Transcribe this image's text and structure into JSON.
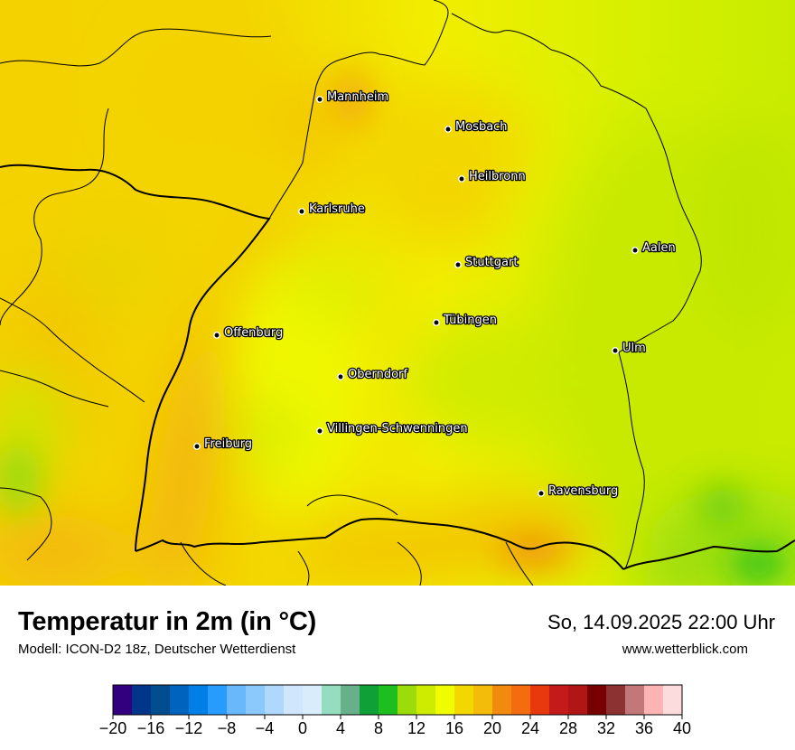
{
  "title": "Temperatur in 2m (in °C)",
  "model": "Modell: ICON-D2 18z, Deutscher Wetterdienst",
  "datetime": "So, 14.09.2025 22:00 Uhr",
  "website": "www.wetterblick.com",
  "map": {
    "cities": [
      {
        "name": "Mannheim"
      },
      {
        "name": "Mosbach"
      },
      {
        "name": "Heilbronn"
      },
      {
        "name": "Karlsruhe"
      },
      {
        "name": "Aalen"
      },
      {
        "name": "Stuttgart"
      },
      {
        "name": "Tübingen"
      },
      {
        "name": "Offenburg"
      },
      {
        "name": "Ulm"
      },
      {
        "name": "Oberndorf"
      },
      {
        "name": "Villingen-Schwenningen"
      },
      {
        "name": "Freiburg"
      },
      {
        "name": "Ravensburg"
      }
    ]
  },
  "color_scale": {
    "unit": "°C",
    "min": -20,
    "max": 40,
    "step": 2,
    "tick_labels": [
      "−20",
      "−16",
      "−12",
      "−8",
      "−4",
      "0",
      "4",
      "8",
      "12",
      "16",
      "20",
      "24",
      "28",
      "32",
      "36",
      "40"
    ],
    "colors": [
      "#32007e",
      "#00358a",
      "#004c8f",
      "#0064be",
      "#0080e6",
      "#289cfc",
      "#6ab8fc",
      "#8bc8fc",
      "#b0d8fc",
      "#cfe6fc",
      "#d9ecfc",
      "#96dcbe",
      "#68b08c",
      "#0fa037",
      "#1ebe1e",
      "#9bdc0a",
      "#cdec00",
      "#f0fc00",
      "#f3d800",
      "#f3bc0a",
      "#f18a0e",
      "#f46c10",
      "#e8380e",
      "#c41a1a",
      "#b01616",
      "#780000",
      "#8c3232",
      "#c27878",
      "#fcb4b4",
      "#fcdcdc"
    ]
  }
}
